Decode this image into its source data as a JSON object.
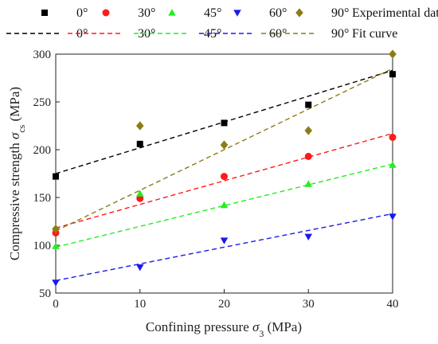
{
  "chart_data": {
    "type": "scatter",
    "xlabel_main": "Confining pressure ",
    "xlabel_symbol": "σ",
    "xlabel_sub": "3",
    "xlabel_unit": " (MPa)",
    "ylabel_main": "Compressive strength ",
    "ylabel_symbol": "σ",
    "ylabel_sub": "cs",
    "ylabel_unit": " (MPa)",
    "xlim": [
      0,
      40
    ],
    "ylim": [
      50,
      300
    ],
    "xticks": [
      "0",
      "10",
      "20",
      "30",
      "40"
    ],
    "yticks": [
      "50",
      "100",
      "150",
      "200",
      "250",
      "300"
    ],
    "legend_experimental_suffix": "Experimental data",
    "legend_fit_suffix": "Fit curve",
    "series": [
      {
        "name": "0°",
        "marker": "square",
        "color": "#000000",
        "x": [
          0,
          10,
          20,
          30,
          40
        ],
        "y": [
          172,
          206,
          228,
          247,
          279
        ],
        "fit": [
          175,
          283
        ]
      },
      {
        "name": "30°",
        "marker": "circle",
        "color": "#ff1a1a",
        "x": [
          0,
          10,
          20,
          30,
          40
        ],
        "y": [
          113,
          149,
          172,
          193,
          213
        ],
        "fit": [
          118,
          217
        ]
      },
      {
        "name": "45°",
        "marker": "triangle-up",
        "color": "#22ee22",
        "x": [
          0,
          10,
          20,
          30,
          40
        ],
        "y": [
          99,
          154,
          142,
          164,
          184
        ],
        "fit": [
          98,
          185
        ]
      },
      {
        "name": "60°",
        "marker": "triangle-down",
        "color": "#1a1aee",
        "x": [
          0,
          10,
          20,
          30,
          40
        ],
        "y": [
          61,
          77,
          105,
          109,
          130
        ],
        "fit": [
          63,
          133
        ]
      },
      {
        "name": "90°",
        "marker": "diamond",
        "color": "#8b7d12",
        "x": [
          0,
          10,
          20,
          30,
          40
        ],
        "y": [
          117,
          225,
          205,
          220,
          300
        ],
        "fit": [
          115,
          285
        ]
      }
    ]
  }
}
